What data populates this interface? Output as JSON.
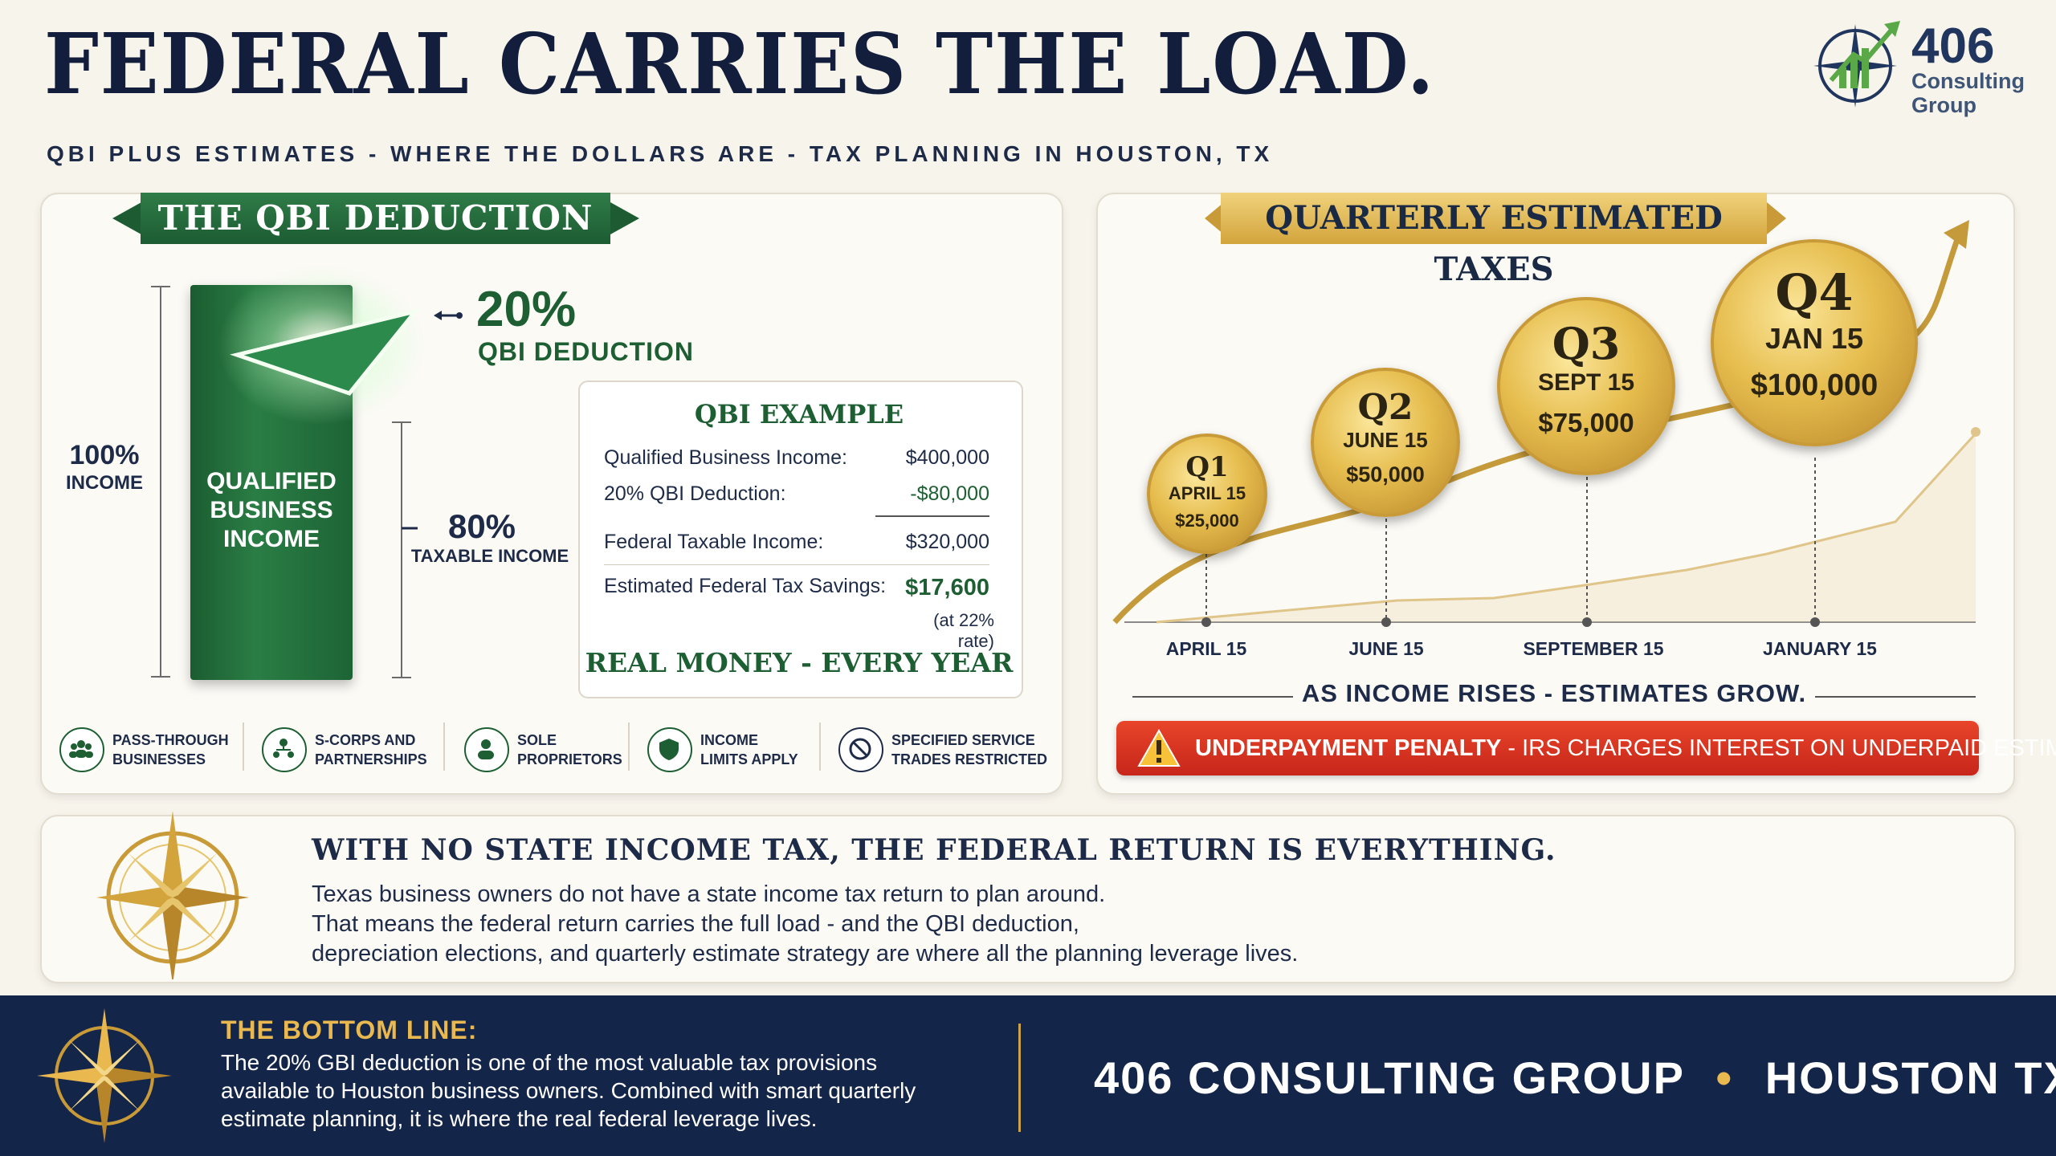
{
  "header": {
    "title": "FEDERAL CARRIES THE LOAD.",
    "subtitle": "QBI PLUS ESTIMATES - WHERE THE DOLLARS ARE - TAX PLANNING IN HOUSTON, TX",
    "logo_number": "406",
    "logo_line1": "Consulting",
    "logo_line2": "Group"
  },
  "qbi": {
    "banner": "THE QBI DEDUCTION",
    "block_label_1": "QUALIFIED",
    "block_label_2": "BUSINESS",
    "block_label_3": "INCOME",
    "pct_deduction": "20%",
    "pct_deduction_label": "QBI DEDUCTION",
    "pct_income": "100%",
    "pct_income_label": "INCOME",
    "pct_taxable": "80%",
    "pct_taxable_label": "TAXABLE INCOME",
    "example": {
      "title": "QBI EXAMPLE",
      "rows": [
        {
          "label": "Qualified Business Income:",
          "value": "$400,000"
        },
        {
          "label": "20% QBI Deduction:",
          "value": "-$80,000"
        },
        {
          "label": "Federal Taxable Income:",
          "value": "$320,000"
        },
        {
          "label": "Estimated Federal Tax Savings:",
          "value": "$17,600"
        }
      ],
      "note": "(at 22% rate)",
      "footer": "REAL MONEY - EVERY YEAR"
    },
    "features": [
      {
        "line1": "PASS-THROUGH",
        "line2": "BUSINESSES"
      },
      {
        "line1": "S-CORPS AND",
        "line2": "PARTNERSHIPS"
      },
      {
        "line1": "SOLE",
        "line2": "PROPRIETORS"
      },
      {
        "line1": "INCOME",
        "line2": "LIMITS APPLY"
      },
      {
        "line1": "SPECIFIED SERVICE",
        "line2": "TRADES RESTRICTED"
      }
    ]
  },
  "estimates": {
    "banner": "QUARTERLY ESTIMATED TAXES",
    "coins": [
      {
        "quarter": "Q1",
        "date": "APRIL 15",
        "amount": "$25,000"
      },
      {
        "quarter": "Q2",
        "date": "JUNE 15",
        "amount": "$50,000"
      },
      {
        "quarter": "Q3",
        "date": "SEPT 15",
        "amount": "$75,000"
      },
      {
        "quarter": "Q4",
        "date": "JAN 15",
        "amount": "$100,000"
      }
    ],
    "ticks": [
      "APRIL 15",
      "JUNE 15",
      "SEPTEMBER 15",
      "JANUARY 15"
    ],
    "caption": "AS INCOME RISES - ESTIMATES GROW.",
    "penalty_bold": "UNDERPAYMENT PENALTY",
    "penalty_rest": "- IRS CHARGES INTEREST ON UNDERPAID ESTIMATES."
  },
  "middle": {
    "heading": "WITH NO STATE INCOME TAX, THE FEDERAL RETURN IS EVERYTHING.",
    "line1": "Texas business owners do not have a state income tax return to plan around.",
    "line2": "That means the federal return carries the full load - and the QBI deduction,",
    "line3": "depreciation elections, and quarterly estimate strategy are where all the planning leverage lives."
  },
  "bottom": {
    "heading": "THE BOTTOM LINE:",
    "line1": "The 20% GBI deduction is one of the most valuable tax provisions",
    "line2": "available to Houston business owners. Combined with smart quarterly",
    "line3": "estimate planning, it is where the real federal leverage lives.",
    "brand": "406 CONSULTING GROUP",
    "separator": "•",
    "city": "HOUSTON TX"
  },
  "colors": {
    "navy": "#14254a",
    "green": "#1d5f33",
    "gold": "#e9b84e",
    "red": "#d2311f"
  }
}
